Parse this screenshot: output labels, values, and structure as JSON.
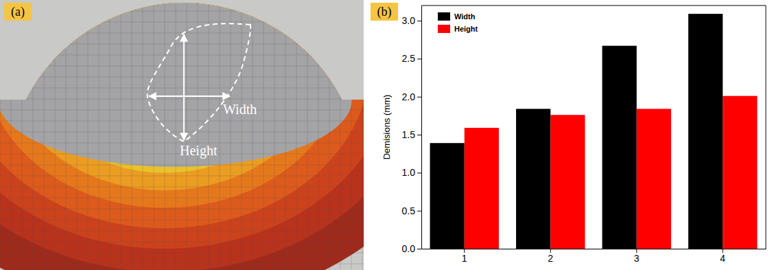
{
  "panel_a": {
    "label": "(a)",
    "width_label": "Width",
    "height_label": "Height"
  },
  "chart_data": {
    "type": "bar",
    "panel_label": "(b)",
    "y_label": "Demisions (mm)",
    "categories": [
      "1",
      "2",
      "3",
      "4"
    ],
    "series": [
      {
        "name": "Width",
        "color": "#000000",
        "values": [
          1.39,
          1.84,
          2.67,
          3.09
        ]
      },
      {
        "name": "Height",
        "color": "#ff0000",
        "values": [
          1.59,
          1.76,
          1.84,
          2.01
        ]
      }
    ],
    "ylim": [
      0,
      3.2
    ],
    "yticks": [
      {
        "value": 0,
        "label": "0.0"
      },
      {
        "value": 0.5,
        "label": "0.5"
      },
      {
        "value": 1,
        "label": "1.0"
      },
      {
        "value": 1.5,
        "label": "1.5"
      },
      {
        "value": 2,
        "label": "2.0"
      },
      {
        "value": 2.5,
        "label": "2.5"
      },
      {
        "value": 3,
        "label": "3.0"
      }
    ],
    "legend": "upper left"
  }
}
